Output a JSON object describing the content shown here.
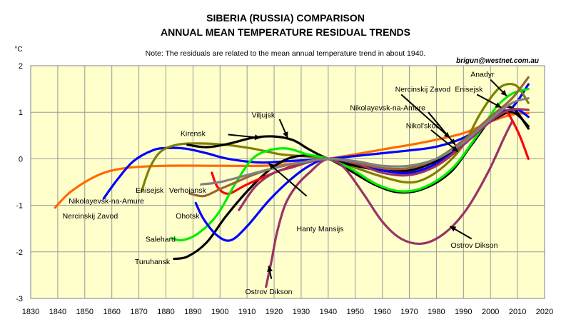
{
  "chart_data": {
    "type": "line",
    "title": [
      "SIBERIA (RUSSIA) COMPARISON",
      "ANNUAL MEAN TEMPERATURE RESIDUAL TRENDS"
    ],
    "note": "Note: The residuals are related to the mean annual temperature trend in about 1940.",
    "credit": "brigun@westnet.com.au",
    "ylabel": "°C",
    "xlabel": "",
    "xlim": [
      1830,
      2020
    ],
    "ylim": [
      -3,
      2
    ],
    "x_ticks": [
      1830,
      1840,
      1850,
      1860,
      1870,
      1880,
      1890,
      1900,
      1910,
      1920,
      1930,
      1940,
      1950,
      1960,
      1970,
      1980,
      1990,
      2000,
      2010,
      2020
    ],
    "y_ticks": [
      -3,
      -2,
      -1,
      0,
      1,
      2
    ],
    "grid": true,
    "colors": {
      "plot_bg": "#ffffcc",
      "outer_bg": "#ffffff",
      "grid": "#9a9a9a"
    },
    "series": [
      {
        "color": "#ff6a00",
        "points": [
          [
            1839,
            -1.05
          ],
          [
            1845,
            -0.7
          ],
          [
            1855,
            -0.35
          ],
          [
            1865,
            -0.2
          ],
          [
            1880,
            -0.15
          ],
          [
            1900,
            -0.15
          ],
          [
            1920,
            -0.14
          ],
          [
            1940,
            0.0
          ],
          [
            1960,
            0.2
          ],
          [
            1975,
            0.35
          ],
          [
            1990,
            0.55
          ],
          [
            2000,
            0.8
          ],
          [
            2008,
            0.95
          ],
          [
            2014,
            0.98
          ]
        ]
      },
      {
        "color": "#0000ff",
        "points": [
          [
            1857,
            -0.85
          ],
          [
            1862,
            -0.45
          ],
          [
            1868,
            -0.05
          ],
          [
            1875,
            0.18
          ],
          [
            1880,
            0.23
          ],
          [
            1887,
            0.22
          ],
          [
            1895,
            0.12
          ],
          [
            1903,
            0.0
          ],
          [
            1915,
            -0.08
          ],
          [
            1925,
            -0.05
          ],
          [
            1940,
            0.0
          ],
          [
            1950,
            0.06
          ],
          [
            1960,
            0.12
          ],
          [
            1970,
            0.18
          ],
          [
            1980,
            0.26
          ],
          [
            1990,
            0.45
          ],
          [
            2000,
            0.8
          ],
          [
            2008,
            1.1
          ],
          [
            2014,
            1.6
          ]
        ]
      },
      {
        "color": "#808000",
        "points": [
          [
            1871,
            -0.7
          ],
          [
            1874,
            -0.2
          ],
          [
            1878,
            0.15
          ],
          [
            1884,
            0.3
          ],
          [
            1892,
            0.33
          ],
          [
            1902,
            0.3
          ],
          [
            1912,
            0.22
          ],
          [
            1922,
            0.1
          ],
          [
            1932,
            0.05
          ],
          [
            1940,
            0.0
          ],
          [
            1948,
            -0.15
          ],
          [
            1958,
            -0.35
          ],
          [
            1968,
            -0.5
          ],
          [
            1975,
            -0.45
          ],
          [
            1983,
            -0.15
          ],
          [
            1990,
            0.3
          ],
          [
            1996,
            0.95
          ],
          [
            2002,
            1.45
          ],
          [
            2006,
            1.6
          ],
          [
            2010,
            1.55
          ],
          [
            2014,
            1.2
          ]
        ]
      },
      {
        "color": "#000000",
        "points": [
          [
            1883,
            -2.15
          ],
          [
            1888,
            -2.1
          ],
          [
            1895,
            -1.8
          ],
          [
            1902,
            -1.25
          ],
          [
            1910,
            -0.7
          ],
          [
            1918,
            -0.25
          ],
          [
            1925,
            0.0
          ],
          [
            1932,
            0.07
          ],
          [
            1940,
            0.0
          ],
          [
            1948,
            -0.25
          ],
          [
            1957,
            -0.55
          ],
          [
            1966,
            -0.72
          ],
          [
            1975,
            -0.65
          ],
          [
            1985,
            -0.3
          ],
          [
            1993,
            0.3
          ],
          [
            2000,
            0.85
          ],
          [
            2005,
            1.1
          ],
          [
            2009,
            1.05
          ],
          [
            2014,
            0.65
          ]
        ]
      },
      {
        "color": "#000000",
        "points": [
          [
            1888,
            0.3
          ],
          [
            1895,
            0.25
          ],
          [
            1903,
            0.32
          ],
          [
            1912,
            0.45
          ],
          [
            1920,
            0.48
          ],
          [
            1927,
            0.4
          ],
          [
            1933,
            0.2
          ],
          [
            1940,
            0.0
          ],
          [
            1950,
            -0.15
          ],
          [
            1960,
            -0.25
          ],
          [
            1970,
            -0.25
          ],
          [
            1978,
            -0.1
          ],
          [
            1985,
            0.1
          ],
          [
            1993,
            0.45
          ],
          [
            2000,
            0.8
          ],
          [
            2008,
            1.0
          ],
          [
            2014,
            0.7
          ]
        ]
      },
      {
        "color": "#ff0000",
        "points": [
          [
            1897,
            -0.3
          ],
          [
            1899,
            -0.6
          ],
          [
            1903,
            -0.75
          ],
          [
            1910,
            -0.55
          ],
          [
            1920,
            -0.3
          ],
          [
            1930,
            -0.1
          ],
          [
            1940,
            0.0
          ],
          [
            1950,
            -0.1
          ],
          [
            1960,
            -0.25
          ],
          [
            1970,
            -0.3
          ],
          [
            1980,
            -0.15
          ],
          [
            1990,
            0.3
          ],
          [
            2000,
            0.85
          ],
          [
            2005,
            1.05
          ],
          [
            2010,
            0.6
          ],
          [
            2014,
            0.0
          ]
        ]
      },
      {
        "color": "#00ee00",
        "points": [
          [
            1882,
            -1.7
          ],
          [
            1886,
            -1.75
          ],
          [
            1892,
            -1.6
          ],
          [
            1899,
            -1.2
          ],
          [
            1906,
            -0.5
          ],
          [
            1912,
            0.0
          ],
          [
            1918,
            0.18
          ],
          [
            1925,
            0.22
          ],
          [
            1932,
            0.1
          ],
          [
            1940,
            0.0
          ],
          [
            1948,
            -0.2
          ],
          [
            1958,
            -0.55
          ],
          [
            1967,
            -0.7
          ],
          [
            1976,
            -0.6
          ],
          [
            1986,
            -0.2
          ],
          [
            1995,
            0.5
          ],
          [
            2002,
            1.1
          ],
          [
            2008,
            1.4
          ],
          [
            2014,
            1.5
          ]
        ]
      },
      {
        "color": "#0000ff",
        "points": [
          [
            1891,
            -0.95
          ],
          [
            1894,
            -1.3
          ],
          [
            1899,
            -1.65
          ],
          [
            1904,
            -1.75
          ],
          [
            1910,
            -1.45
          ],
          [
            1918,
            -0.9
          ],
          [
            1926,
            -0.45
          ],
          [
            1933,
            -0.15
          ],
          [
            1940,
            0.0
          ],
          [
            1950,
            -0.1
          ],
          [
            1960,
            -0.25
          ],
          [
            1970,
            -0.3
          ],
          [
            1980,
            -0.1
          ],
          [
            1990,
            0.3
          ],
          [
            1998,
            0.75
          ],
          [
            2004,
            1.0
          ],
          [
            2010,
            1.05
          ],
          [
            2014,
            0.9
          ]
        ]
      },
      {
        "color": "#993366",
        "points": [
          [
            1907,
            -1.1
          ],
          [
            1913,
            -0.6
          ],
          [
            1920,
            -0.3
          ],
          [
            1927,
            -0.18
          ],
          [
            1933,
            -0.07
          ],
          [
            1940,
            0.0
          ],
          [
            1946,
            -0.2
          ],
          [
            1953,
            -0.75
          ],
          [
            1960,
            -1.35
          ],
          [
            1967,
            -1.72
          ],
          [
            1975,
            -1.82
          ],
          [
            1983,
            -1.6
          ],
          [
            1991,
            -1.1
          ],
          [
            1999,
            -0.3
          ],
          [
            2005,
            0.45
          ],
          [
            2008,
            0.8
          ]
        ]
      },
      {
        "color": "#993366",
        "points": [
          [
            1917,
            -2.75
          ],
          [
            1919,
            -2.2
          ],
          [
            1921,
            -1.6
          ],
          [
            1924,
            -1.0
          ],
          [
            1928,
            -0.6
          ],
          [
            1933,
            -0.3
          ],
          [
            1940,
            0.0
          ],
          [
            1950,
            -0.1
          ],
          [
            1960,
            -0.3
          ],
          [
            1970,
            -0.35
          ],
          [
            1980,
            -0.15
          ],
          [
            1990,
            0.3
          ],
          [
            2000,
            0.8
          ],
          [
            2007,
            1.05
          ],
          [
            2014,
            1.05
          ]
        ]
      },
      {
        "color": "#996633",
        "points": [
          [
            1889,
            -0.75
          ],
          [
            1894,
            -0.8
          ],
          [
            1900,
            -0.65
          ],
          [
            1906,
            -0.5
          ],
          [
            1912,
            -0.35
          ],
          [
            1920,
            -0.2
          ],
          [
            1930,
            -0.08
          ],
          [
            1940,
            0.0
          ],
          [
            1950,
            -0.08
          ],
          [
            1960,
            -0.2
          ],
          [
            1970,
            -0.2
          ],
          [
            1980,
            0.0
          ],
          [
            1990,
            0.4
          ],
          [
            2000,
            0.9
          ],
          [
            2008,
            1.3
          ],
          [
            2014,
            1.75
          ]
        ]
      },
      {
        "color": "#808080",
        "points": [
          [
            1893,
            -0.55
          ],
          [
            1900,
            -0.5
          ],
          [
            1910,
            -0.35
          ],
          [
            1920,
            -0.2
          ],
          [
            1930,
            -0.08
          ],
          [
            1940,
            0.0
          ],
          [
            1950,
            -0.05
          ],
          [
            1960,
            -0.15
          ],
          [
            1970,
            -0.15
          ],
          [
            1980,
            0.0
          ],
          [
            1990,
            0.35
          ],
          [
            2000,
            0.85
          ],
          [
            2008,
            1.2
          ],
          [
            2014,
            1.3
          ]
        ]
      }
    ],
    "labels": [
      {
        "text": "Nercinskij Zavod",
        "x": 1852,
        "y": -1.22
      },
      {
        "text": "Nikolayevsk-na-Amure",
        "x": 1858,
        "y": -0.9
      },
      {
        "text": "Enisejsk",
        "x": 1874,
        "y": -0.67
      },
      {
        "text": "Verhojansk",
        "x": 1888,
        "y": -0.67
      },
      {
        "text": "Ohotsk",
        "x": 1888,
        "y": -1.22
      },
      {
        "text": "Salehard",
        "x": 1878,
        "y": -1.72
      },
      {
        "text": "Turuhansk",
        "x": 1875,
        "y": -2.2
      },
      {
        "text": "Kirensk",
        "x": 1890,
        "y": 0.55
      },
      {
        "text": "Viljujsk",
        "x": 1916,
        "y": 0.95
      },
      {
        "text": "Hanty Mansijs",
        "x": 1937,
        "y": -1.5
      },
      {
        "text": "Ostrov Dikson",
        "x": 1918,
        "y": -2.85
      },
      {
        "text": "Ostrov Dikson",
        "x": 1994,
        "y": -1.85
      },
      {
        "text": "Nercinskij Zavod",
        "x": 1975,
        "y": 1.5
      },
      {
        "text": "Nikolayevsk-na-Amure",
        "x": 1962,
        "y": 1.1
      },
      {
        "text": "Nikol'skoe",
        "x": 1975,
        "y": 0.72
      },
      {
        "text": "Enisejsk",
        "x": 1992,
        "y": 1.5
      },
      {
        "text": "Anadyr",
        "x": 1997,
        "y": 1.82
      }
    ],
    "pointers": [
      {
        "from": [
          1932,
          -0.8
        ],
        "to": [
          1918,
          -0.1
        ]
      },
      {
        "from": [
          1922,
          0.85
        ],
        "to": [
          1925,
          0.45
        ]
      },
      {
        "from": [
          1903,
          0.52
        ],
        "to": [
          1915,
          0.45
        ]
      },
      {
        "from": [
          1919,
          -2.58
        ],
        "to": [
          1918,
          -2.3
        ]
      },
      {
        "from": [
          1993,
          -1.72
        ],
        "to": [
          1985,
          -1.45
        ]
      },
      {
        "from": [
          1967,
          1.38
        ],
        "to": [
          1985,
          0.45
        ]
      },
      {
        "from": [
          1977,
          1.0
        ],
        "to": [
          1987,
          0.3
        ]
      },
      {
        "from": [
          1978,
          0.62
        ],
        "to": [
          1988,
          0.15
        ]
      },
      {
        "from": [
          1995,
          1.38
        ],
        "to": [
          2004,
          1.1
        ]
      },
      {
        "from": [
          2000,
          1.7
        ],
        "to": [
          2006,
          1.35
        ]
      }
    ]
  }
}
